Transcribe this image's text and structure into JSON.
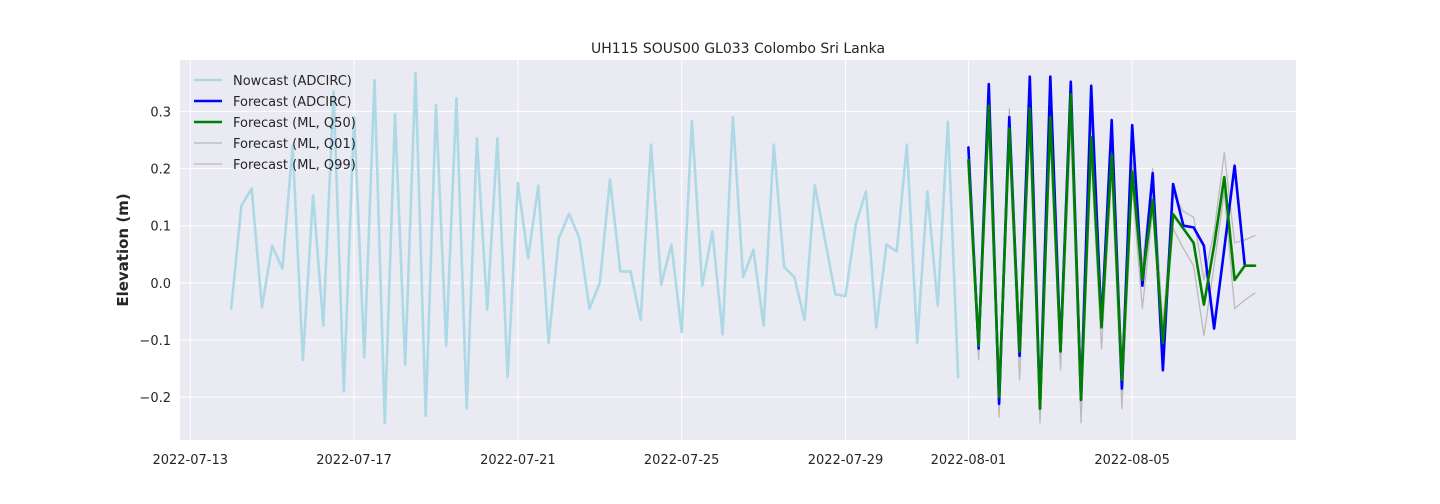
{
  "chart_data": {
    "type": "line",
    "title": "UH115 SOUS00 GL033 Colombo Sri Lanka",
    "xlabel": "",
    "ylabel": "Elevation (m)",
    "xlim": [
      "2022-07-12T18:00",
      "2022-08-09T00:00"
    ],
    "ylim": [
      -0.275,
      0.39
    ],
    "grid": true,
    "legend_position": "top-left",
    "xticks": [
      "2022-07-13",
      "2022-07-17",
      "2022-07-21",
      "2022-07-25",
      "2022-07-29",
      "2022-08-01",
      "2022-08-05"
    ],
    "yticks": [
      -0.2,
      -0.1,
      0.0,
      0.1,
      0.2,
      0.3
    ],
    "ytick_labels": [
      "−0.2",
      "−0.1",
      "0.0",
      "0.1",
      "0.2",
      "0.3"
    ],
    "series": [
      {
        "name": "Nowcast (ADCIRC)",
        "color": "#add8e6",
        "x": [
          "2022-07-14T00:00",
          "2022-07-14T06:00",
          "2022-07-14T12:00",
          "2022-07-14T18:00",
          "2022-07-15T00:00",
          "2022-07-15T06:00",
          "2022-07-15T12:00",
          "2022-07-15T18:00",
          "2022-07-16T00:00",
          "2022-07-16T06:00",
          "2022-07-16T12:00",
          "2022-07-16T18:00",
          "2022-07-17T00:00",
          "2022-07-17T06:00",
          "2022-07-17T12:00",
          "2022-07-17T18:00",
          "2022-07-18T00:00",
          "2022-07-18T06:00",
          "2022-07-18T12:00",
          "2022-07-18T18:00",
          "2022-07-19T00:00",
          "2022-07-19T06:00",
          "2022-07-19T12:00",
          "2022-07-19T18:00",
          "2022-07-20T00:00",
          "2022-07-20T06:00",
          "2022-07-20T12:00",
          "2022-07-20T18:00",
          "2022-07-21T00:00",
          "2022-07-21T06:00",
          "2022-07-21T12:00",
          "2022-07-21T18:00",
          "2022-07-22T00:00",
          "2022-07-22T06:00",
          "2022-07-22T12:00",
          "2022-07-22T18:00",
          "2022-07-23T00:00",
          "2022-07-23T06:00",
          "2022-07-23T12:00",
          "2022-07-23T18:00",
          "2022-07-24T00:00",
          "2022-07-24T06:00",
          "2022-07-24T12:00",
          "2022-07-24T18:00",
          "2022-07-25T00:00",
          "2022-07-25T06:00",
          "2022-07-25T12:00",
          "2022-07-25T18:00",
          "2022-07-26T00:00",
          "2022-07-26T06:00",
          "2022-07-26T12:00",
          "2022-07-26T18:00",
          "2022-07-27T00:00",
          "2022-07-27T06:00",
          "2022-07-27T12:00",
          "2022-07-27T18:00",
          "2022-07-28T00:00",
          "2022-07-28T06:00",
          "2022-07-28T12:00",
          "2022-07-28T18:00",
          "2022-07-29T00:00",
          "2022-07-29T06:00",
          "2022-07-29T12:00",
          "2022-07-29T18:00",
          "2022-07-30T00:00",
          "2022-07-30T06:00",
          "2022-07-30T12:00",
          "2022-07-30T18:00",
          "2022-07-31T00:00",
          "2022-07-31T06:00",
          "2022-07-31T12:00",
          "2022-07-31T18:00"
        ],
        "y": [
          -0.045,
          0.135,
          0.165,
          -0.043,
          0.065,
          0.025,
          0.24,
          -0.135,
          0.153,
          -0.075,
          0.335,
          -0.19,
          0.29,
          -0.13,
          0.355,
          -0.245,
          0.295,
          -0.143,
          0.367,
          -0.233,
          0.311,
          -0.11,
          0.323,
          -0.22,
          0.253,
          -0.047,
          0.253,
          -0.165,
          0.175,
          0.043,
          0.17,
          -0.105,
          0.078,
          0.121,
          0.078,
          -0.045,
          0.0,
          0.181,
          0.02,
          0.02,
          -0.065,
          0.242,
          -0.003,
          0.067,
          -0.086,
          0.283,
          -0.005,
          0.09,
          -0.09,
          0.29,
          0.01,
          0.058,
          -0.075,
          0.242,
          0.028,
          0.01,
          -0.065,
          0.171,
          0.075,
          -0.02,
          -0.023,
          0.102,
          0.16,
          -0.078,
          0.067,
          0.055,
          0.242,
          -0.105,
          0.16,
          -0.04,
          0.282,
          -0.165
        ]
      },
      {
        "name": "Forecast (ADCIRC)",
        "color": "#0000ff",
        "x": [
          "2022-08-01T00:00",
          "2022-08-01T06:00",
          "2022-08-01T12:00",
          "2022-08-01T18:00",
          "2022-08-02T00:00",
          "2022-08-02T06:00",
          "2022-08-02T12:00",
          "2022-08-02T18:00",
          "2022-08-03T00:00",
          "2022-08-03T06:00",
          "2022-08-03T12:00",
          "2022-08-03T18:00",
          "2022-08-04T00:00",
          "2022-08-04T06:00",
          "2022-08-04T12:00",
          "2022-08-04T18:00",
          "2022-08-05T00:00",
          "2022-08-05T06:00",
          "2022-08-05T12:00",
          "2022-08-05T18:00",
          "2022-08-06T00:00",
          "2022-08-06T06:00",
          "2022-08-06T12:00",
          "2022-08-06T18:00",
          "2022-08-07T00:00",
          "2022-08-07T06:00",
          "2022-08-07T12:00",
          "2022-08-07T18:00"
        ],
        "y": [
          0.237,
          -0.115,
          0.348,
          -0.212,
          0.29,
          -0.128,
          0.361,
          -0.22,
          0.361,
          -0.12,
          0.352,
          -0.205,
          0.345,
          -0.076,
          0.285,
          -0.185,
          0.276,
          -0.005,
          0.192,
          -0.153,
          0.173,
          0.1,
          0.097,
          0.065,
          -0.08,
          0.06,
          0.205,
          0.03
        ]
      },
      {
        "name": "Forecast (ML, Q50)",
        "color": "#008000",
        "x": [
          "2022-08-01T00:00",
          "2022-08-01T06:00",
          "2022-08-01T12:00",
          "2022-08-01T18:00",
          "2022-08-02T00:00",
          "2022-08-02T06:00",
          "2022-08-02T12:00",
          "2022-08-02T18:00",
          "2022-08-03T00:00",
          "2022-08-03T06:00",
          "2022-08-03T12:00",
          "2022-08-03T18:00",
          "2022-08-04T00:00",
          "2022-08-04T06:00",
          "2022-08-04T12:00",
          "2022-08-04T18:00",
          "2022-08-05T00:00",
          "2022-08-05T06:00",
          "2022-08-05T12:00",
          "2022-08-05T18:00",
          "2022-08-06T00:00",
          "2022-08-06T06:00",
          "2022-08-06T12:00",
          "2022-08-06T18:00",
          "2022-08-07T00:00",
          "2022-08-07T06:00",
          "2022-08-07T12:00",
          "2022-08-07T18:00",
          "2022-08-08T00:00"
        ],
        "y": [
          0.215,
          -0.11,
          0.31,
          -0.2,
          0.27,
          -0.12,
          0.305,
          -0.22,
          0.29,
          -0.12,
          0.33,
          -0.205,
          0.255,
          -0.078,
          0.225,
          -0.17,
          0.195,
          0.005,
          0.145,
          -0.105,
          0.12,
          0.095,
          0.07,
          -0.038,
          0.065,
          0.185,
          0.005,
          0.03,
          0.03
        ]
      },
      {
        "name": "Forecast (ML, Q01)",
        "color": "#bbbbbb",
        "x": [
          "2022-08-01T00:00",
          "2022-08-01T06:00",
          "2022-08-01T12:00",
          "2022-08-01T18:00",
          "2022-08-02T00:00",
          "2022-08-02T06:00",
          "2022-08-02T12:00",
          "2022-08-02T18:00",
          "2022-08-03T00:00",
          "2022-08-03T06:00",
          "2022-08-03T12:00",
          "2022-08-03T18:00",
          "2022-08-04T00:00",
          "2022-08-04T06:00",
          "2022-08-04T12:00",
          "2022-08-04T18:00",
          "2022-08-05T00:00",
          "2022-08-05T06:00",
          "2022-08-05T12:00",
          "2022-08-05T18:00",
          "2022-08-06T00:00",
          "2022-08-06T06:00",
          "2022-08-06T12:00",
          "2022-08-06T18:00",
          "2022-08-07T00:00",
          "2022-08-07T06:00",
          "2022-08-07T12:00",
          "2022-08-07T18:00",
          "2022-08-08T00:00"
        ],
        "y": [
          0.19,
          -0.135,
          0.27,
          -0.235,
          0.24,
          -0.17,
          0.27,
          -0.245,
          0.25,
          -0.152,
          0.27,
          -0.245,
          0.215,
          -0.115,
          0.19,
          -0.22,
          0.17,
          -0.045,
          0.13,
          -0.12,
          0.095,
          0.06,
          0.03,
          -0.092,
          0.03,
          0.16,
          -0.045,
          -0.03,
          -0.018
        ]
      },
      {
        "name": "Forecast (ML, Q99)",
        "color": "#bbbbbb",
        "x": [
          "2022-08-01T00:00",
          "2022-08-01T06:00",
          "2022-08-01T12:00",
          "2022-08-01T18:00",
          "2022-08-02T00:00",
          "2022-08-02T06:00",
          "2022-08-02T12:00",
          "2022-08-02T18:00",
          "2022-08-03T00:00",
          "2022-08-03T06:00",
          "2022-08-03T12:00",
          "2022-08-03T18:00",
          "2022-08-04T00:00",
          "2022-08-04T06:00",
          "2022-08-04T12:00",
          "2022-08-04T18:00",
          "2022-08-05T00:00",
          "2022-08-05T06:00",
          "2022-08-05T12:00",
          "2022-08-05T18:00",
          "2022-08-06T00:00",
          "2022-08-06T06:00",
          "2022-08-06T12:00",
          "2022-08-06T18:00",
          "2022-08-07T00:00",
          "2022-08-07T06:00",
          "2022-08-07T12:00",
          "2022-08-07T18:00",
          "2022-08-08T00:00"
        ],
        "y": [
          0.225,
          -0.09,
          0.325,
          -0.175,
          0.305,
          -0.09,
          0.325,
          -0.185,
          0.315,
          -0.085,
          0.35,
          -0.165,
          0.29,
          -0.04,
          0.255,
          -0.13,
          0.215,
          0.03,
          0.2,
          -0.075,
          0.155,
          0.125,
          0.115,
          0.005,
          0.09,
          0.228,
          0.07,
          0.075,
          0.083
        ]
      }
    ]
  }
}
